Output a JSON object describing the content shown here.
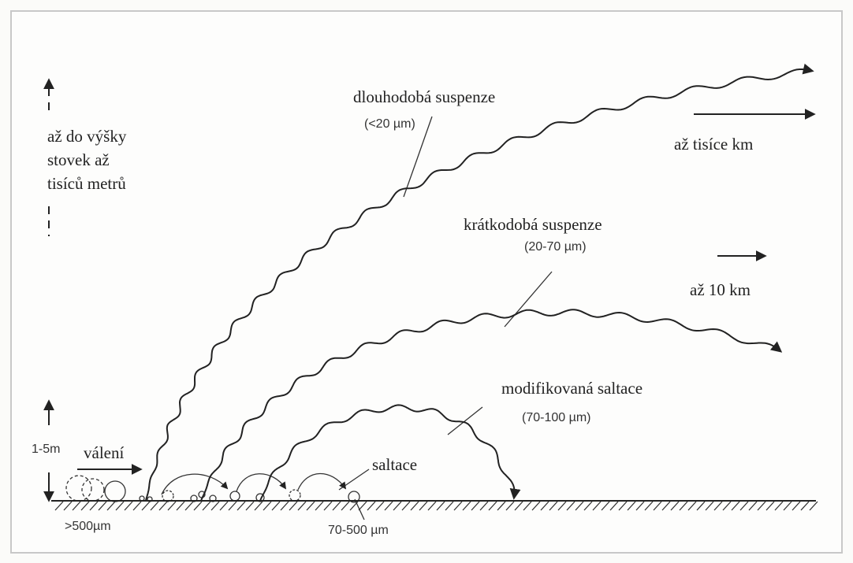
{
  "labels": {
    "long_suspension": "dlouhodobá suspenze",
    "long_size": "(<20 µm)",
    "height": [
      "až do výšky",
      "stovek až",
      "tisíců metrů"
    ],
    "far_distance": "až tisíce km",
    "short_suspension": "krátkodobá suspenze",
    "short_size": "(20-70 µm)",
    "short_distance": "až 10 km",
    "modified_saltation": "modifikovaná saltace",
    "modified_size": "(70-100 µm)",
    "low_height": "1-5m",
    "rolling": "válení",
    "saltation": "saltace",
    "rolling_size": ">500µm",
    "saltation_size": "70-500 µm"
  }
}
